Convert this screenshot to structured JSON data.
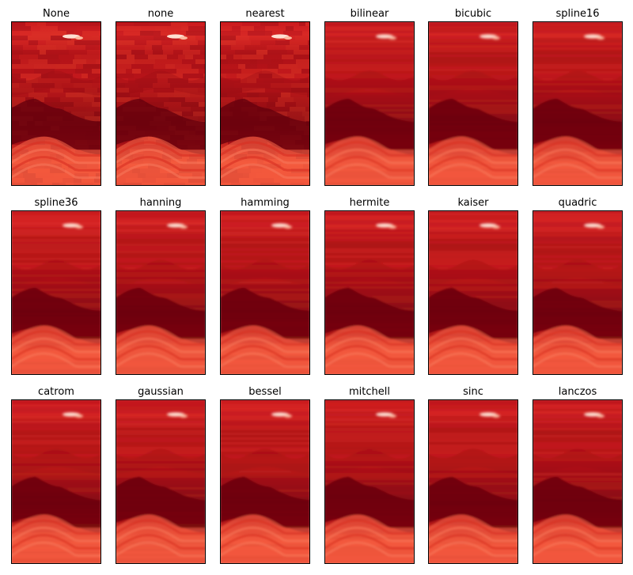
{
  "figure": {
    "titles": [
      "None",
      "none",
      "nearest",
      "bilinear",
      "bicubic",
      "spline16",
      "spline36",
      "hanning",
      "hamming",
      "hermite",
      "kaiser",
      "quadric",
      "catrom",
      "gaussian",
      "bessel",
      "mitchell",
      "sinc",
      "lanczos"
    ]
  },
  "chart_data": {
    "type": "heatmap",
    "layout": "3 rows x 6 columns of image panels",
    "colormap": "Reds",
    "colors": {
      "dark_band": "#67000d",
      "mid_band": "#cb181d",
      "light_band": "#fb6a4a",
      "hot_spot": "#fee0d2"
    },
    "axes_visible": false,
    "grid": false,
    "panels": [
      {
        "title": "None",
        "interpolation": "none",
        "style": "blocky"
      },
      {
        "title": "none",
        "interpolation": "none",
        "style": "blocky"
      },
      {
        "title": "nearest",
        "interpolation": "nearest",
        "style": "blocky"
      },
      {
        "title": "bilinear",
        "interpolation": "bilinear",
        "style": "smooth"
      },
      {
        "title": "bicubic",
        "interpolation": "bicubic",
        "style": "smooth"
      },
      {
        "title": "spline16",
        "interpolation": "spline16",
        "style": "smooth"
      },
      {
        "title": "spline36",
        "interpolation": "spline36",
        "style": "smooth"
      },
      {
        "title": "hanning",
        "interpolation": "hanning",
        "style": "smooth"
      },
      {
        "title": "hamming",
        "interpolation": "hamming",
        "style": "smooth"
      },
      {
        "title": "hermite",
        "interpolation": "hermite",
        "style": "smooth"
      },
      {
        "title": "kaiser",
        "interpolation": "kaiser",
        "style": "smooth"
      },
      {
        "title": "quadric",
        "interpolation": "quadric",
        "style": "smooth"
      },
      {
        "title": "catrom",
        "interpolation": "catrom",
        "style": "smooth"
      },
      {
        "title": "gaussian",
        "interpolation": "gaussian",
        "style": "smooth"
      },
      {
        "title": "bessel",
        "interpolation": "bessel",
        "style": "smooth"
      },
      {
        "title": "mitchell",
        "interpolation": "mitchell",
        "style": "smooth"
      },
      {
        "title": "sinc",
        "interpolation": "sinc",
        "style": "smooth"
      },
      {
        "title": "lanczos",
        "interpolation": "lanczos",
        "style": "smooth"
      }
    ]
  }
}
